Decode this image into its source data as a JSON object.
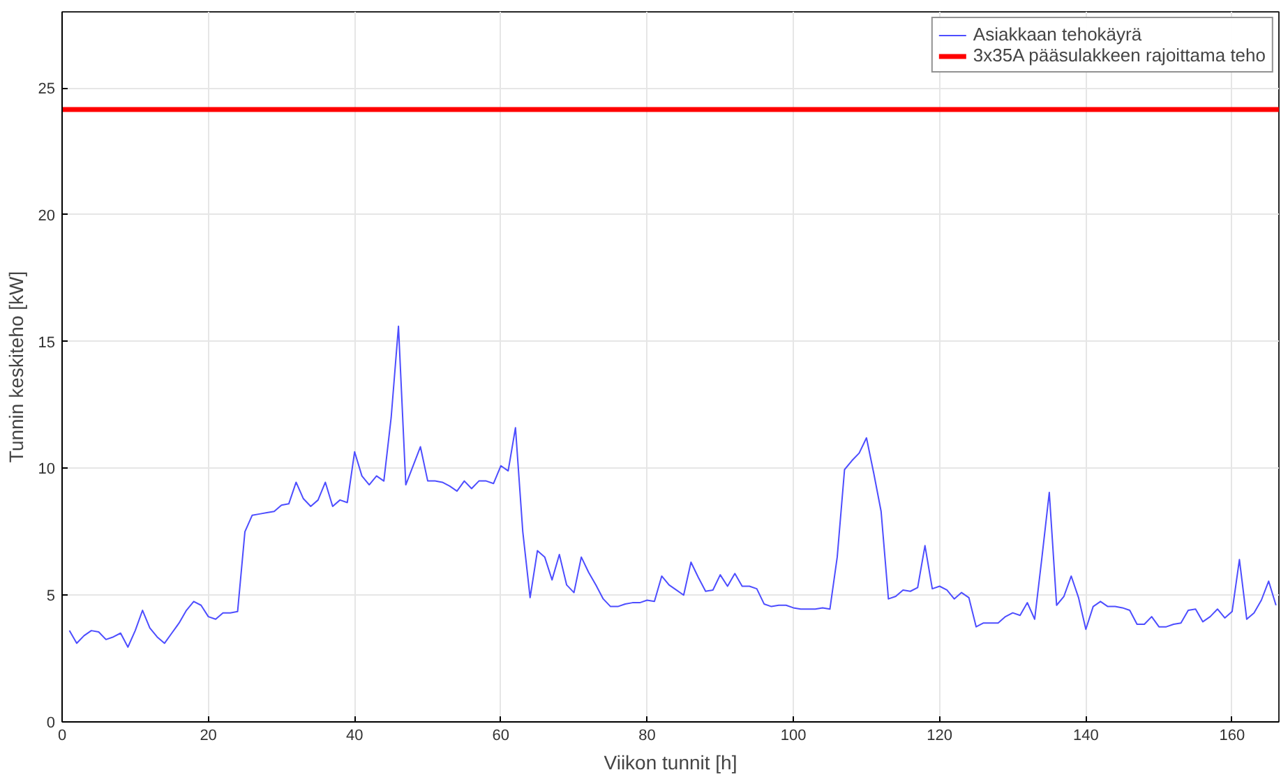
{
  "chart_data": {
    "type": "line",
    "xlabel": "Viikon tunnit [h]",
    "ylabel": "Tunnin keskiteho [kW]",
    "xlim": [
      0,
      166.4
    ],
    "ylim": [
      0,
      28
    ],
    "xticks": [
      0,
      20,
      40,
      60,
      80,
      100,
      120,
      140,
      160
    ],
    "yticks": [
      0,
      5,
      10,
      15,
      20,
      25
    ],
    "grid": true,
    "legend": "top right",
    "line_style": "solid",
    "marker": "none",
    "series": [
      {
        "name": "Asiakkaan tehokäyrä",
        "color": "#4d4dff",
        "x": [
          1,
          2,
          3,
          4,
          5,
          6,
          7,
          8,
          9,
          10,
          11,
          12,
          13,
          14,
          15,
          16,
          17,
          18,
          19,
          20,
          21,
          22,
          23,
          24,
          25,
          26,
          27,
          28,
          29,
          30,
          31,
          32,
          33,
          34,
          35,
          36,
          37,
          38,
          39,
          40,
          41,
          42,
          43,
          44,
          45,
          46,
          47,
          48,
          49,
          50,
          51,
          52,
          53,
          54,
          55,
          56,
          57,
          58,
          59,
          60,
          61,
          62,
          63,
          64,
          65,
          66,
          67,
          68,
          69,
          70,
          71,
          72,
          73,
          74,
          75,
          76,
          77,
          78,
          79,
          80,
          81,
          82,
          83,
          84,
          85,
          86,
          87,
          88,
          89,
          90,
          91,
          92,
          93,
          94,
          95,
          96,
          97,
          98,
          99,
          100,
          101,
          102,
          103,
          104,
          105,
          106,
          107,
          108,
          109,
          110,
          111,
          112,
          113,
          114,
          115,
          116,
          117,
          118,
          119,
          120,
          121,
          122,
          123,
          124,
          125,
          126,
          127,
          128,
          129,
          130,
          131,
          132,
          133,
          134,
          135,
          136,
          137,
          138,
          139,
          140,
          141,
          142,
          143,
          144,
          145,
          146,
          147,
          148,
          149,
          150,
          151,
          152,
          153,
          154,
          155,
          156,
          157,
          158,
          159,
          160,
          161,
          162,
          163,
          164,
          165,
          166
        ],
        "values": [
          3.6,
          3.1,
          3.4,
          3.6,
          3.55,
          3.25,
          3.35,
          3.5,
          2.95,
          3.6,
          4.4,
          3.7,
          3.35,
          3.1,
          3.5,
          3.9,
          4.4,
          4.75,
          4.6,
          4.15,
          4.05,
          4.3,
          4.3,
          4.35,
          7.5,
          8.15,
          8.2,
          8.25,
          8.3,
          8.55,
          8.6,
          9.45,
          8.8,
          8.5,
          8.75,
          9.45,
          8.5,
          8.75,
          8.65,
          10.65,
          9.7,
          9.35,
          9.7,
          9.5,
          12.0,
          15.6,
          9.35,
          10.1,
          10.85,
          9.5,
          9.5,
          9.45,
          9.3,
          9.1,
          9.5,
          9.2,
          9.5,
          9.5,
          9.4,
          10.1,
          9.9,
          11.6,
          7.5,
          4.9,
          6.75,
          6.5,
          5.6,
          6.6,
          5.4,
          5.1,
          6.5,
          5.9,
          5.4,
          4.85,
          4.55,
          4.55,
          4.65,
          4.7,
          4.7,
          4.8,
          4.75,
          5.75,
          5.4,
          5.2,
          5.0,
          6.3,
          5.7,
          5.15,
          5.2,
          5.8,
          5.35,
          5.85,
          5.35,
          5.35,
          5.25,
          4.65,
          4.55,
          4.6,
          4.6,
          4.5,
          4.45,
          4.45,
          4.45,
          4.5,
          4.45,
          6.5,
          9.95,
          10.3,
          10.6,
          11.2,
          9.8,
          8.3,
          4.85,
          4.95,
          5.2,
          5.15,
          5.3,
          6.95,
          5.25,
          5.35,
          5.2,
          4.85,
          5.1,
          4.9,
          3.75,
          3.9,
          3.9,
          3.9,
          4.15,
          4.3,
          4.2,
          4.7,
          4.05,
          6.5,
          9.05,
          4.6,
          4.95,
          5.75,
          4.9,
          3.65,
          4.55,
          4.75,
          4.55,
          4.55,
          4.5,
          4.4,
          3.85,
          3.85,
          4.15,
          3.75,
          3.75,
          3.85,
          3.9,
          4.4,
          4.45,
          3.95,
          4.15,
          4.45,
          4.1,
          4.35,
          6.4,
          4.05,
          4.3,
          4.8,
          5.55,
          4.6
        ]
      },
      {
        "name": "3x35A pääsulakkeen rajoittama teho",
        "color": "#ff0000",
        "x": [
          0,
          166.4
        ],
        "values": [
          24.15,
          24.15
        ]
      }
    ]
  }
}
